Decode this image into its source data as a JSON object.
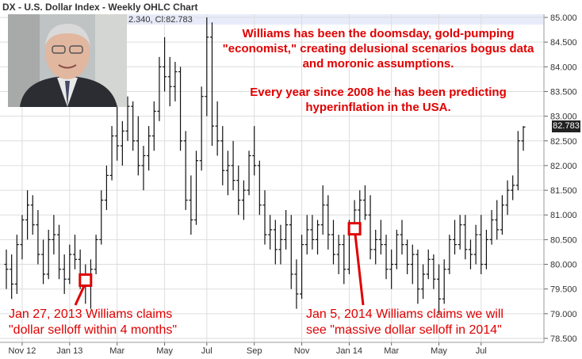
{
  "header": {
    "title": "DX - U.S. Dollar Index - Weekly OHLC Chart",
    "readout": "2.340, Cl:82.783"
  },
  "annotations": {
    "top_para1": "Williams has been the doomsday, gold-pumping \"economist,\" creating delusional scenarios bogus data and moronic assumptions.",
    "top_para2": "Every year since 2008 he has been predicting hyperinflation in the USA.",
    "left_line1": "Jan 27, 2013 Williams claims",
    "left_line2": "\"dollar selloff within 4 months\"",
    "right_line1": "Jan 5, 2014 Williams claims we will",
    "right_line2": "see \"massive dollar selloff in 2014\""
  },
  "last_value_label": "82.783",
  "colors": {
    "bars": "#111111",
    "grid": "#dddddd",
    "annotation": "#e00000",
    "highlight": "#e8ecfa"
  },
  "chart_data": {
    "type": "ohlc",
    "title": "DX - U.S. Dollar Index - Weekly OHLC Chart",
    "ylim": [
      78.5,
      85.0
    ],
    "y_ticks": [
      78.5,
      79.0,
      79.5,
      80.0,
      80.5,
      81.0,
      81.5,
      82.0,
      82.5,
      83.0,
      83.5,
      84.0,
      84.5,
      85.0
    ],
    "y_tick_labels": [
      "78.500",
      "79.000",
      "79.500",
      "80.000",
      "80.500",
      "81.000",
      "81.500",
      "82.000",
      "82.500",
      "83.000",
      "83.500",
      "84.000",
      "84.500",
      "85.000"
    ],
    "x_tick_labels": [
      "Nov 12",
      "Jan 13",
      "Mar",
      "May",
      "Jul",
      "Sep",
      "Nov",
      "Jan 14",
      "Mar",
      "May",
      "Jul"
    ],
    "x_tick_index": [
      3,
      12,
      21,
      30,
      38,
      47,
      56,
      65,
      73,
      82,
      90
    ],
    "grid": true,
    "last_close": 82.783,
    "markers": [
      {
        "index": 15,
        "value": 79.68
      },
      {
        "index": 66,
        "value": 80.72
      }
    ],
    "bars": [
      {
        "o": 80.0,
        "h": 80.3,
        "l": 79.5,
        "c": 79.9
      },
      {
        "o": 79.9,
        "h": 80.2,
        "l": 79.3,
        "c": 79.6
      },
      {
        "o": 79.6,
        "h": 80.6,
        "l": 79.4,
        "c": 80.4
      },
      {
        "o": 80.4,
        "h": 81.0,
        "l": 80.1,
        "c": 80.9
      },
      {
        "o": 80.9,
        "h": 81.5,
        "l": 80.5,
        "c": 81.2
      },
      {
        "o": 81.2,
        "h": 81.4,
        "l": 80.6,
        "c": 80.8
      },
      {
        "o": 80.8,
        "h": 81.1,
        "l": 80.0,
        "c": 80.2
      },
      {
        "o": 80.2,
        "h": 80.5,
        "l": 79.6,
        "c": 79.8
      },
      {
        "o": 79.8,
        "h": 80.7,
        "l": 79.7,
        "c": 80.5
      },
      {
        "o": 80.5,
        "h": 81.0,
        "l": 80.2,
        "c": 80.6
      },
      {
        "o": 80.6,
        "h": 80.8,
        "l": 79.7,
        "c": 79.9
      },
      {
        "o": 79.9,
        "h": 80.2,
        "l": 79.4,
        "c": 79.7
      },
      {
        "o": 79.7,
        "h": 80.4,
        "l": 79.6,
        "c": 80.2
      },
      {
        "o": 80.2,
        "h": 80.6,
        "l": 79.9,
        "c": 80.1
      },
      {
        "o": 80.1,
        "h": 80.3,
        "l": 79.5,
        "c": 79.8
      },
      {
        "o": 79.8,
        "h": 80.0,
        "l": 79.2,
        "c": 79.6
      },
      {
        "o": 79.6,
        "h": 80.1,
        "l": 79.1,
        "c": 79.9
      },
      {
        "o": 79.9,
        "h": 80.6,
        "l": 79.8,
        "c": 80.5
      },
      {
        "o": 80.5,
        "h": 81.5,
        "l": 80.4,
        "c": 81.3
      },
      {
        "o": 81.3,
        "h": 82.0,
        "l": 81.1,
        "c": 81.8
      },
      {
        "o": 81.8,
        "h": 82.8,
        "l": 81.7,
        "c": 82.6
      },
      {
        "o": 82.6,
        "h": 83.2,
        "l": 82.1,
        "c": 82.4
      },
      {
        "o": 82.4,
        "h": 82.9,
        "l": 82.0,
        "c": 82.7
      },
      {
        "o": 82.7,
        "h": 83.4,
        "l": 82.5,
        "c": 83.2
      },
      {
        "o": 83.2,
        "h": 83.3,
        "l": 82.3,
        "c": 82.5
      },
      {
        "o": 82.5,
        "h": 83.0,
        "l": 81.8,
        "c": 82.0
      },
      {
        "o": 82.0,
        "h": 82.4,
        "l": 81.5,
        "c": 82.2
      },
      {
        "o": 82.2,
        "h": 82.8,
        "l": 81.9,
        "c": 82.6
      },
      {
        "o": 82.6,
        "h": 83.3,
        "l": 82.3,
        "c": 83.1
      },
      {
        "o": 83.1,
        "h": 84.2,
        "l": 82.9,
        "c": 84.0
      },
      {
        "o": 84.0,
        "h": 84.6,
        "l": 83.5,
        "c": 83.8
      },
      {
        "o": 83.8,
        "h": 84.2,
        "l": 83.2,
        "c": 83.6
      },
      {
        "o": 83.6,
        "h": 84.1,
        "l": 83.3,
        "c": 83.9
      },
      {
        "o": 83.9,
        "h": 84.0,
        "l": 82.3,
        "c": 82.5
      },
      {
        "o": 82.5,
        "h": 82.7,
        "l": 81.1,
        "c": 81.3
      },
      {
        "o": 81.3,
        "h": 81.8,
        "l": 80.6,
        "c": 80.9
      },
      {
        "o": 80.9,
        "h": 82.3,
        "l": 80.8,
        "c": 82.1
      },
      {
        "o": 82.1,
        "h": 83.6,
        "l": 81.9,
        "c": 83.4
      },
      {
        "o": 83.4,
        "h": 85.0,
        "l": 83.0,
        "c": 84.6
      },
      {
        "o": 84.6,
        "h": 84.9,
        "l": 82.4,
        "c": 82.8
      },
      {
        "o": 82.8,
        "h": 83.3,
        "l": 82.2,
        "c": 82.5
      },
      {
        "o": 82.5,
        "h": 82.8,
        "l": 81.6,
        "c": 81.9
      },
      {
        "o": 81.9,
        "h": 82.3,
        "l": 81.4,
        "c": 82.0
      },
      {
        "o": 82.0,
        "h": 82.5,
        "l": 81.5,
        "c": 81.7
      },
      {
        "o": 81.7,
        "h": 82.0,
        "l": 81.0,
        "c": 81.3
      },
      {
        "o": 81.3,
        "h": 81.7,
        "l": 80.9,
        "c": 81.5
      },
      {
        "o": 81.5,
        "h": 82.3,
        "l": 81.4,
        "c": 82.2
      },
      {
        "o": 82.2,
        "h": 82.8,
        "l": 81.8,
        "c": 82.0
      },
      {
        "o": 82.0,
        "h": 82.1,
        "l": 81.0,
        "c": 81.2
      },
      {
        "o": 81.2,
        "h": 81.5,
        "l": 80.4,
        "c": 80.6
      },
      {
        "o": 80.6,
        "h": 81.0,
        "l": 80.3,
        "c": 80.7
      },
      {
        "o": 80.7,
        "h": 80.9,
        "l": 80.0,
        "c": 80.3
      },
      {
        "o": 80.3,
        "h": 80.8,
        "l": 80.0,
        "c": 80.5
      },
      {
        "o": 80.5,
        "h": 81.1,
        "l": 80.3,
        "c": 80.8
      },
      {
        "o": 80.8,
        "h": 81.0,
        "l": 79.5,
        "c": 79.8
      },
      {
        "o": 79.8,
        "h": 80.1,
        "l": 79.1,
        "c": 79.4
      },
      {
        "o": 79.4,
        "h": 80.6,
        "l": 79.3,
        "c": 80.4
      },
      {
        "o": 80.4,
        "h": 81.0,
        "l": 80.2,
        "c": 80.7
      },
      {
        "o": 80.7,
        "h": 81.0,
        "l": 80.3,
        "c": 80.5
      },
      {
        "o": 80.5,
        "h": 80.9,
        "l": 80.2,
        "c": 80.8
      },
      {
        "o": 80.8,
        "h": 81.6,
        "l": 80.6,
        "c": 81.2
      },
      {
        "o": 81.2,
        "h": 81.4,
        "l": 80.3,
        "c": 80.6
      },
      {
        "o": 80.6,
        "h": 80.9,
        "l": 80.0,
        "c": 80.2
      },
      {
        "o": 80.2,
        "h": 80.6,
        "l": 79.8,
        "c": 80.4
      },
      {
        "o": 80.4,
        "h": 80.6,
        "l": 79.6,
        "c": 79.9
      },
      {
        "o": 79.9,
        "h": 80.9,
        "l": 79.8,
        "c": 80.8
      },
      {
        "o": 80.8,
        "h": 81.3,
        "l": 80.6,
        "c": 81.1
      },
      {
        "o": 81.1,
        "h": 81.5,
        "l": 80.7,
        "c": 81.3
      },
      {
        "o": 81.3,
        "h": 81.6,
        "l": 80.9,
        "c": 81.0
      },
      {
        "o": 81.0,
        "h": 81.4,
        "l": 80.1,
        "c": 80.3
      },
      {
        "o": 80.3,
        "h": 80.7,
        "l": 80.0,
        "c": 80.5
      },
      {
        "o": 80.5,
        "h": 80.9,
        "l": 80.2,
        "c": 80.4
      },
      {
        "o": 80.4,
        "h": 80.6,
        "l": 79.7,
        "c": 79.9
      },
      {
        "o": 79.9,
        "h": 80.3,
        "l": 79.5,
        "c": 80.0
      },
      {
        "o": 80.0,
        "h": 80.7,
        "l": 79.9,
        "c": 80.6
      },
      {
        "o": 80.6,
        "h": 80.9,
        "l": 80.2,
        "c": 80.4
      },
      {
        "o": 80.4,
        "h": 80.5,
        "l": 79.8,
        "c": 80.0
      },
      {
        "o": 80.0,
        "h": 80.4,
        "l": 79.6,
        "c": 80.2
      },
      {
        "o": 80.2,
        "h": 80.3,
        "l": 79.2,
        "c": 79.5
      },
      {
        "o": 79.5,
        "h": 80.0,
        "l": 79.3,
        "c": 79.8
      },
      {
        "o": 79.8,
        "h": 80.3,
        "l": 79.7,
        "c": 80.1
      },
      {
        "o": 80.1,
        "h": 80.2,
        "l": 79.5,
        "c": 79.7
      },
      {
        "o": 79.7,
        "h": 80.0,
        "l": 79.0,
        "c": 79.3
      },
      {
        "o": 79.3,
        "h": 80.1,
        "l": 79.2,
        "c": 79.9
      },
      {
        "o": 79.9,
        "h": 80.6,
        "l": 79.8,
        "c": 80.5
      },
      {
        "o": 80.5,
        "h": 80.9,
        "l": 80.2,
        "c": 80.4
      },
      {
        "o": 80.4,
        "h": 81.0,
        "l": 80.3,
        "c": 80.8
      },
      {
        "o": 80.8,
        "h": 81.0,
        "l": 80.1,
        "c": 80.3
      },
      {
        "o": 80.3,
        "h": 80.5,
        "l": 79.9,
        "c": 80.2
      },
      {
        "o": 80.2,
        "h": 80.8,
        "l": 80.0,
        "c": 80.6
      },
      {
        "o": 80.6,
        "h": 81.0,
        "l": 79.8,
        "c": 80.0
      },
      {
        "o": 80.0,
        "h": 80.7,
        "l": 79.9,
        "c": 80.5
      },
      {
        "o": 80.5,
        "h": 81.1,
        "l": 80.4,
        "c": 80.9
      },
      {
        "o": 80.9,
        "h": 81.3,
        "l": 80.5,
        "c": 80.7
      },
      {
        "o": 80.7,
        "h": 81.4,
        "l": 80.6,
        "c": 81.2
      },
      {
        "o": 81.2,
        "h": 81.7,
        "l": 81.0,
        "c": 81.5
      },
      {
        "o": 81.5,
        "h": 81.8,
        "l": 81.3,
        "c": 81.6
      },
      {
        "o": 81.6,
        "h": 82.7,
        "l": 81.5,
        "c": 82.5
      },
      {
        "o": 82.5,
        "h": 82.8,
        "l": 82.3,
        "c": 82.78
      }
    ]
  }
}
